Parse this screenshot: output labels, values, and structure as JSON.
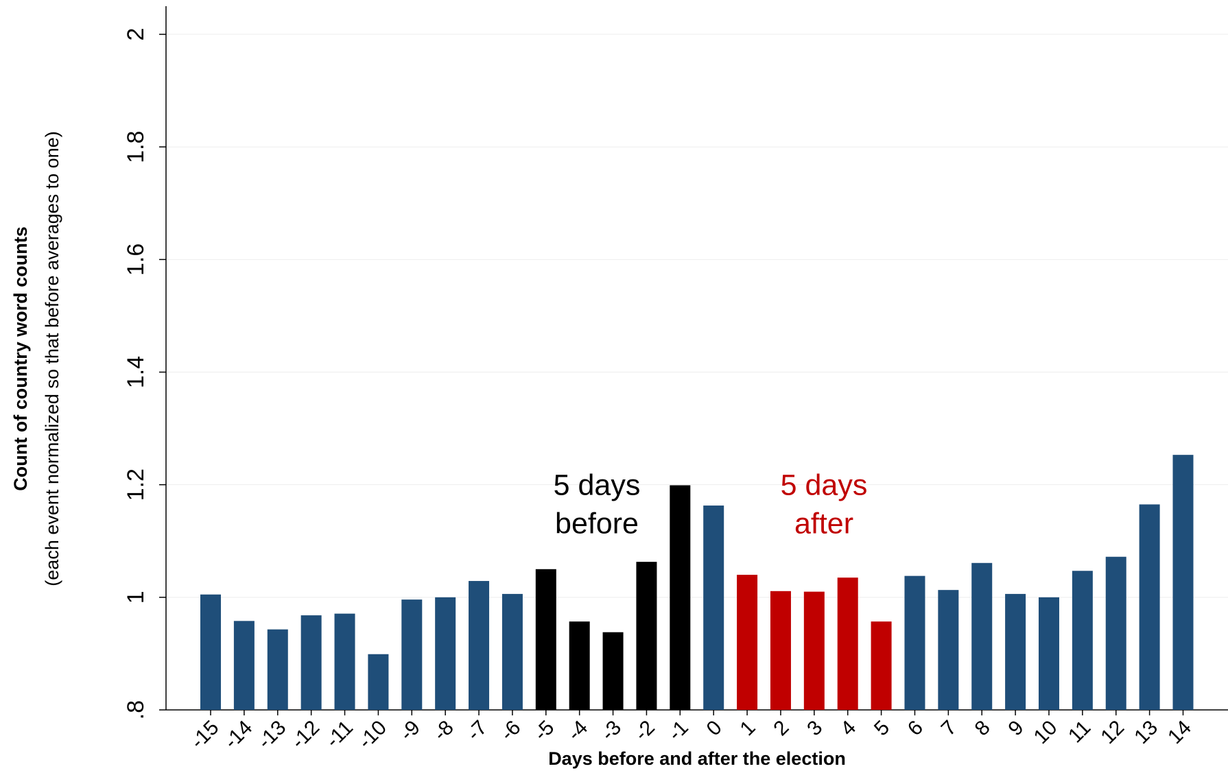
{
  "chart_data": {
    "type": "bar",
    "y_label": "Count of country word counts",
    "y_sublabel": "(each event normalized so that before averages to one)",
    "x_label": "Days before and after the election",
    "categories": [
      "-15",
      "-14",
      "-13",
      "-12",
      "-11",
      "-10",
      "-9",
      "-8",
      "-7",
      "-6",
      "-5",
      "-4",
      "-3",
      "-2",
      "-1",
      "0",
      "1",
      "2",
      "3",
      "4",
      "5",
      "6",
      "7",
      "8",
      "9",
      "10",
      "11",
      "12",
      "13",
      "14"
    ],
    "values": [
      1.005,
      0.958,
      0.943,
      0.968,
      0.971,
      0.899,
      0.996,
      1.0,
      1.029,
      1.006,
      1.05,
      0.957,
      0.938,
      1.063,
      1.199,
      1.163,
      1.04,
      1.011,
      1.01,
      1.035,
      0.957,
      1.038,
      1.013,
      1.061,
      1.006,
      1.0,
      1.047,
      1.072,
      1.165,
      1.253
    ],
    "colors": [
      "#1f4e79",
      "#1f4e79",
      "#1f4e79",
      "#1f4e79",
      "#1f4e79",
      "#1f4e79",
      "#1f4e79",
      "#1f4e79",
      "#1f4e79",
      "#1f4e79",
      "#000000",
      "#000000",
      "#000000",
      "#000000",
      "#000000",
      "#1f4e79",
      "#c00000",
      "#c00000",
      "#c00000",
      "#c00000",
      "#c00000",
      "#1f4e79",
      "#1f4e79",
      "#1f4e79",
      "#1f4e79",
      "#1f4e79",
      "#1f4e79",
      "#1f4e79",
      "#1f4e79",
      "#1f4e79"
    ],
    "ylim": [
      0.8,
      2.05
    ],
    "yticks": [
      {
        "value": 0.8,
        "label": ".8"
      },
      1,
      1.2,
      1.4,
      1.6,
      1.8,
      2
    ],
    "grid": true,
    "annotations": [
      {
        "lines": [
          "5 days",
          "before"
        ],
        "color": "#000000"
      },
      {
        "lines": [
          "5 days",
          "after"
        ],
        "color": "#c00000"
      }
    ]
  }
}
